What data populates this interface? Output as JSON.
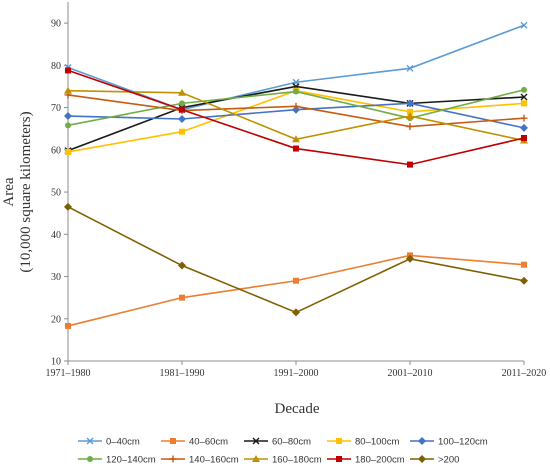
{
  "chart_data": {
    "type": "line",
    "title": "",
    "xlabel": "Decade",
    "ylabel_line1": "Area",
    "ylabel_line2": "(10,000 square kilometers)",
    "categories": [
      "1971–1980",
      "1981–1990",
      "1991–2000",
      "2001–2010",
      "2011–2020"
    ],
    "ylim": [
      10,
      95
    ],
    "yticks": [
      10,
      20,
      30,
      40,
      50,
      60,
      70,
      80,
      90
    ],
    "grid": false,
    "legend_position": "bottom",
    "series": [
      {
        "name": "0–40cm",
        "color": "#5b9bd5",
        "marker": "x",
        "values": [
          79.5,
          69.5,
          76.0,
          79.3,
          89.5
        ]
      },
      {
        "name": "40–60cm",
        "color": "#ed7d31",
        "marker": "square",
        "values": [
          18.3,
          25.0,
          29.0,
          35.0,
          32.8
        ]
      },
      {
        "name": "60–80cm",
        "color": "#1a1a1a",
        "marker": "x",
        "values": [
          59.8,
          70.0,
          75.0,
          71.0,
          72.5
        ]
      },
      {
        "name": "80–100cm",
        "color": "#ffc000",
        "marker": "square",
        "values": [
          59.5,
          64.3,
          74.0,
          69.0,
          71.0
        ]
      },
      {
        "name": "100–120cm",
        "color": "#4472c4",
        "marker": "diamond",
        "values": [
          68.0,
          67.3,
          69.5,
          71.0,
          65.2
        ]
      },
      {
        "name": "120–140cm",
        "color": "#70ad47",
        "marker": "circle",
        "values": [
          65.8,
          71.0,
          73.8,
          67.5,
          74.2
        ]
      },
      {
        "name": "140–160cm",
        "color": "#c55a11",
        "marker": "plus",
        "values": [
          73.0,
          69.3,
          70.3,
          65.5,
          67.5
        ]
      },
      {
        "name": "160–180cm",
        "color": "#bf9000",
        "marker": "triangle",
        "values": [
          74.0,
          73.5,
          62.5,
          68.0,
          62.2
        ]
      },
      {
        "name": "180–200cm",
        "color": "#c00000",
        "marker": "square",
        "values": [
          78.8,
          69.5,
          60.3,
          56.5,
          62.8
        ]
      },
      {
        "name": ">200",
        "color": "#7f6000",
        "marker": "diamond",
        "values": [
          46.5,
          32.6,
          21.5,
          34.2,
          29.0
        ]
      }
    ]
  }
}
